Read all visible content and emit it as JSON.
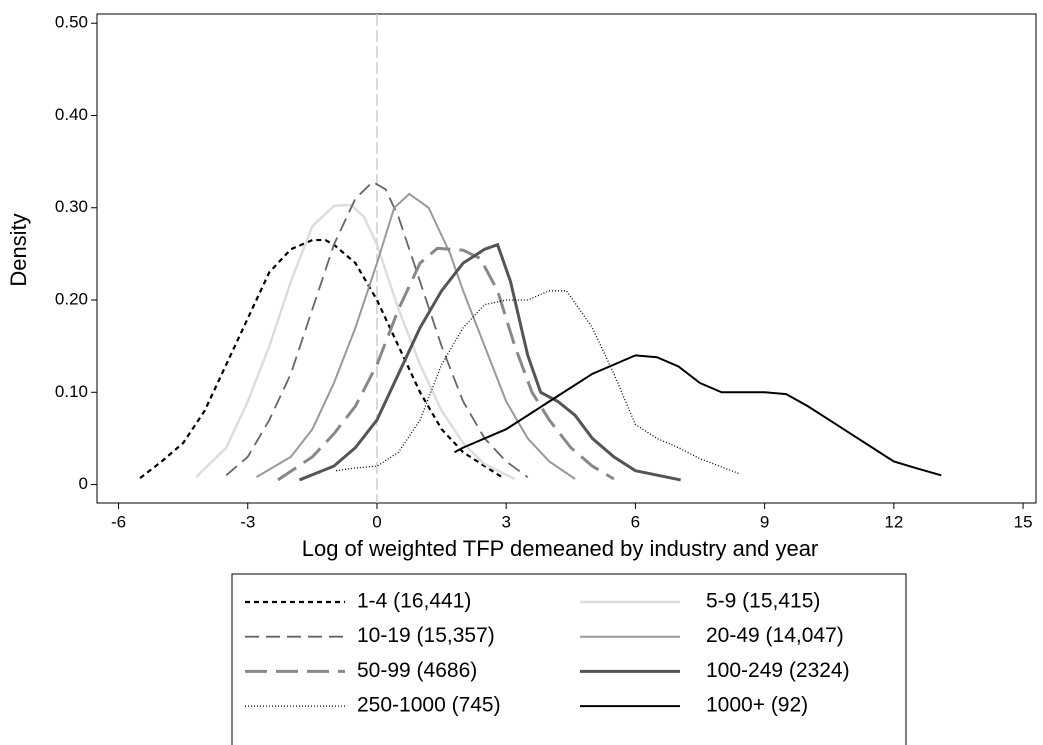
{
  "chart_data": {
    "type": "line",
    "xlabel": "Log of weighted TFP demeaned by industry and year",
    "ylabel": "Density",
    "xlim": [
      -6.5,
      15.3
    ],
    "ylim": [
      -0.02,
      0.51
    ],
    "xticks": [
      -6,
      -3,
      0,
      3,
      6,
      9,
      12,
      15
    ],
    "yticks": [
      0,
      {
        "value": 0.1,
        "label": "0.10"
      },
      {
        "value": 0.2,
        "label": "0.20"
      },
      {
        "value": 0.3,
        "label": "0.30"
      },
      {
        "value": 0.4,
        "label": "0.40"
      },
      {
        "value": 0.5,
        "label": "0.50"
      }
    ],
    "xline": 0,
    "legend": "bottom",
    "series": [
      {
        "name": "1-4 (16,441)",
        "color": "#000000",
        "dash": "5 4",
        "width": 2.2,
        "x": [
          -5.5,
          -5,
          -4.5,
          -4,
          -3.5,
          -3,
          -2.5,
          -2,
          -1.5,
          -1.2,
          -1,
          -0.5,
          0,
          0.5,
          1,
          1.5,
          2,
          2.5,
          2.9
        ],
        "values": [
          0.007,
          0.025,
          0.045,
          0.08,
          0.13,
          0.18,
          0.23,
          0.255,
          0.265,
          0.265,
          0.26,
          0.24,
          0.2,
          0.15,
          0.1,
          0.06,
          0.035,
          0.02,
          0.008
        ]
      },
      {
        "name": "5-9 (15,415)",
        "color": "#dddddd",
        "dash": "",
        "width": 2.5,
        "x": [
          -4.2,
          -3.5,
          -3,
          -2.5,
          -2,
          -1.5,
          -1,
          -0.6,
          -0.3,
          0,
          0.5,
          1,
          1.5,
          2,
          2.5,
          3.2
        ],
        "values": [
          0.008,
          0.04,
          0.09,
          0.15,
          0.22,
          0.28,
          0.302,
          0.303,
          0.29,
          0.26,
          0.19,
          0.13,
          0.08,
          0.045,
          0.022,
          0.006
        ]
      },
      {
        "name": "10-19 (15,357)",
        "color": "#666666",
        "dash": "14 7",
        "width": 1.8,
        "x": [
          -3.5,
          -3,
          -2.5,
          -2,
          -1.5,
          -1,
          -0.5,
          -0.1,
          0.2,
          0.5,
          1,
          1.5,
          2,
          2.5,
          3,
          3.5
        ],
        "values": [
          0.01,
          0.03,
          0.07,
          0.12,
          0.19,
          0.26,
          0.31,
          0.328,
          0.32,
          0.29,
          0.22,
          0.15,
          0.09,
          0.05,
          0.025,
          0.008
        ]
      },
      {
        "name": "20-49 (14,047)",
        "color": "#999999",
        "dash": "",
        "width": 2,
        "x": [
          -2.8,
          -2,
          -1.5,
          -1,
          -0.5,
          0,
          0.4,
          0.75,
          1.2,
          1.7,
          2,
          2.5,
          3,
          3.5,
          4,
          4.6
        ],
        "values": [
          0.008,
          0.03,
          0.06,
          0.11,
          0.17,
          0.24,
          0.3,
          0.315,
          0.3,
          0.25,
          0.21,
          0.15,
          0.09,
          0.05,
          0.025,
          0.006
        ]
      },
      {
        "name": "50-99 (4686)",
        "color": "#888888",
        "dash": "22 9",
        "width": 3,
        "x": [
          -2.3,
          -1.5,
          -1,
          -0.5,
          0,
          0.5,
          1,
          1.4,
          2,
          2.4,
          2.8,
          3.2,
          3.6,
          4,
          4.5,
          5,
          5.5
        ],
        "values": [
          0.005,
          0.03,
          0.055,
          0.085,
          0.13,
          0.19,
          0.24,
          0.256,
          0.254,
          0.245,
          0.21,
          0.15,
          0.1,
          0.07,
          0.04,
          0.02,
          0.006
        ]
      },
      {
        "name": "100-249 (2324)",
        "color": "#555555",
        "dash": "",
        "width": 3,
        "x": [
          -1.8,
          -1,
          -0.5,
          0,
          0.5,
          1,
          1.5,
          2,
          2.5,
          2.8,
          3.1,
          3.5,
          3.8,
          4.2,
          4.6,
          5,
          5.5,
          6,
          7.05
        ],
        "values": [
          0.005,
          0.02,
          0.04,
          0.07,
          0.12,
          0.17,
          0.21,
          0.24,
          0.255,
          0.26,
          0.22,
          0.14,
          0.1,
          0.09,
          0.075,
          0.05,
          0.03,
          0.015,
          0.005
        ]
      },
      {
        "name": "250-1000 (745)",
        "color": "#000000",
        "dash": "1 2",
        "width": 1.3,
        "x": [
          -0.95,
          -0.5,
          0,
          0.5,
          1,
          1.5,
          2,
          2.5,
          3,
          3.5,
          4,
          4.4,
          5,
          5.5,
          6,
          6.5,
          7,
          7.5,
          8.4
        ],
        "values": [
          0.015,
          0.018,
          0.02,
          0.035,
          0.07,
          0.13,
          0.17,
          0.195,
          0.2,
          0.2,
          0.21,
          0.21,
          0.17,
          0.12,
          0.065,
          0.05,
          0.04,
          0.028,
          0.012
        ]
      },
      {
        "name": "1000+ (92)",
        "color": "#000000",
        "dash": "",
        "width": 2,
        "x": [
          1.8,
          2,
          3,
          4,
          5,
          6,
          6.5,
          7,
          7.5,
          8,
          9,
          9.5,
          10,
          10.5,
          11,
          11.5,
          12,
          12.5,
          13.1
        ],
        "values": [
          0.035,
          0.04,
          0.06,
          0.09,
          0.12,
          0.14,
          0.138,
          0.128,
          0.11,
          0.1,
          0.1,
          0.098,
          0.085,
          0.07,
          0.055,
          0.04,
          0.025,
          0.018,
          0.01
        ]
      }
    ]
  }
}
